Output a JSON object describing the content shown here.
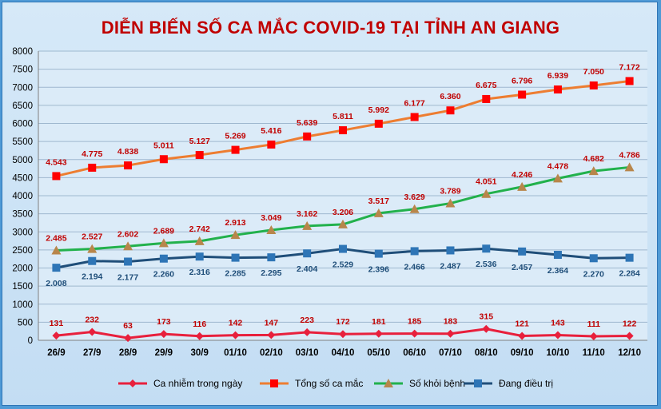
{
  "chart_data": {
    "type": "line",
    "title": "DIỄN BIẾN SỐ CA MẮC COVID-19 TẠI TỈNH AN GIANG",
    "ylim": [
      0,
      8000
    ],
    "yticks": [
      "0",
      "500",
      "1000",
      "1500",
      "2000",
      "2500",
      "3000",
      "3500",
      "4000",
      "4500",
      "5000",
      "5500",
      "6000",
      "6500",
      "7000",
      "7500",
      "8000"
    ],
    "grid": true,
    "legend_position": "bottom",
    "categories": [
      "26/9",
      "27/9",
      "28/9",
      "29/9",
      "30/9",
      "01/10",
      "02/10",
      "03/10",
      "04/10",
      "05/10",
      "06/10",
      "07/10",
      "08/10",
      "09/10",
      "10/10",
      "11/10",
      "12/10"
    ],
    "series": [
      {
        "name": "Ca nhiễm trong ngày",
        "color": "#e8203c",
        "label_color": "#c00000",
        "marker": "diamond",
        "values": [
          131,
          232,
          63,
          173,
          116,
          142,
          147,
          223,
          172,
          181,
          185,
          183,
          315,
          121,
          143,
          111,
          122
        ],
        "labels": [
          "131",
          "232",
          "63",
          "173",
          "116",
          "142",
          "147",
          "223",
          "172",
          "181",
          "185",
          "183",
          "315",
          "121",
          "143",
          "111",
          "122"
        ]
      },
      {
        "name": "Tổng số ca mắc",
        "color": "#ed7d31",
        "marker_color": "#ff0000",
        "label_color": "#c00000",
        "marker": "square",
        "values": [
          4543,
          4775,
          4838,
          5011,
          5127,
          5269,
          5416,
          5639,
          5811,
          5992,
          6177,
          6360,
          6675,
          6796,
          6939,
          7050,
          7172
        ],
        "labels": [
          "4.543",
          "4.775",
          "4.838",
          "5.011",
          "5.127",
          "5.269",
          "5.416",
          "5.639",
          "5.811",
          "5.992",
          "6.177",
          "6.360",
          "6.675",
          "6.796",
          "6.939",
          "7.050",
          "7.172"
        ]
      },
      {
        "name": "Số khỏi bệnh",
        "color": "#22b14c",
        "marker_color": "#b8864b",
        "label_color": "#c00000",
        "marker": "triangle",
        "values": [
          2485,
          2527,
          2602,
          2689,
          2742,
          2913,
          3049,
          3162,
          3206,
          3517,
          3629,
          3789,
          4051,
          4246,
          4478,
          4682,
          4786
        ],
        "labels": [
          "2.485",
          "2.527",
          "2.602",
          "2.689",
          "2.742",
          "2.913",
          "3.049",
          "3.162",
          "3.206",
          "3.517",
          "3.629",
          "3.789",
          "4.051",
          "4.246",
          "4.478",
          "4.682",
          "4.786"
        ]
      },
      {
        "name": "Đang điều trị",
        "color": "#1f4e79",
        "marker_color": "#2e75b6",
        "label_color": "#1f4e79",
        "marker": "square",
        "values": [
          2008,
          2194,
          2177,
          2260,
          2316,
          2285,
          2295,
          2404,
          2529,
          2396,
          2466,
          2487,
          2536,
          2457,
          2364,
          2270,
          2284
        ],
        "labels": [
          "2.008",
          "2.194",
          "2.177",
          "2.260",
          "2.316",
          "2.285",
          "2.295",
          "2.404",
          "2.529",
          "2.396",
          "2.466",
          "2.487",
          "2.536",
          "2.457",
          "2.364",
          "2.270",
          "2.284"
        ]
      }
    ]
  }
}
